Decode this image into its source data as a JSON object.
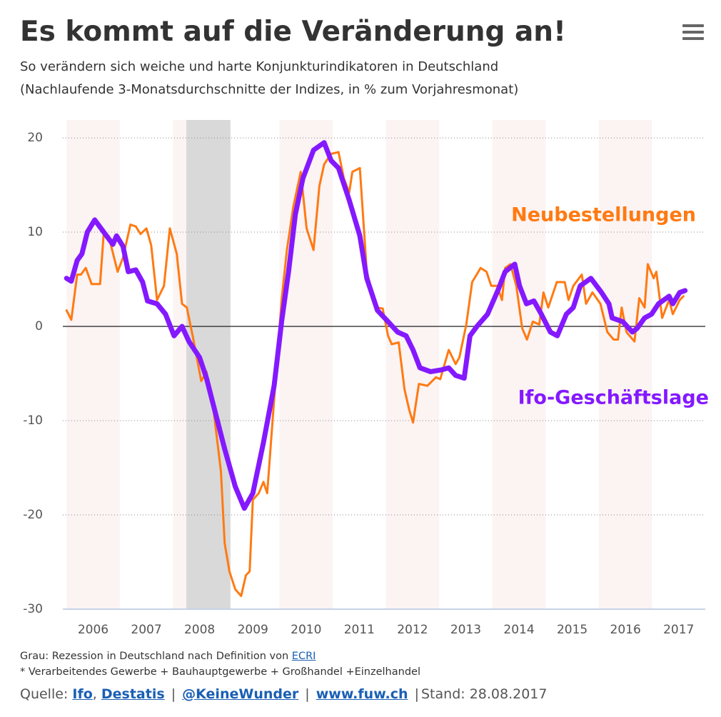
{
  "chart_data": {
    "type": "line",
    "title": "Es kommt auf die Veränderung an!",
    "subtitle": [
      "So verändern sich weiche und harte Konjunkturindikatoren in Deutschland",
      "(Nachlaufende 3-Monatsdurchschnitte der Indizes, in % zum Vorjahresmonat)"
    ],
    "xlim": [
      2005.93,
      2018.0
    ],
    "xticks": [
      {
        "value": 2006.5,
        "label": "2006"
      },
      {
        "value": 2007.5,
        "label": "2007"
      },
      {
        "value": 2008.5,
        "label": "2008"
      },
      {
        "value": 2009.5,
        "label": "2009"
      },
      {
        "value": 2010.5,
        "label": "2010"
      },
      {
        "value": 2011.5,
        "label": "2011"
      },
      {
        "value": 2012.5,
        "label": "2012"
      },
      {
        "value": 2013.5,
        "label": "2013"
      },
      {
        "value": 2014.5,
        "label": "2014"
      },
      {
        "value": 2015.5,
        "label": "2015"
      },
      {
        "value": 2016.5,
        "label": "2016"
      },
      {
        "value": 2017.5,
        "label": "2017"
      }
    ],
    "ylim": [
      -30,
      21.9
    ],
    "yticks": [
      -30,
      -20,
      -10,
      0,
      10,
      20
    ],
    "grid": true,
    "shaded_years": [
      [
        2006,
        2007
      ],
      [
        2008,
        2009
      ],
      [
        2010,
        2011
      ],
      [
        2012,
        2013
      ],
      [
        2014,
        2015
      ],
      [
        2016,
        2017
      ]
    ],
    "recession": [
      2008.25,
      2009.08
    ],
    "series": [
      {
        "name": "Neubestellungen",
        "color": "#ff7a12",
        "width": 3,
        "x": [
          2006,
          2006.09,
          2006.2,
          2006.27,
          2006.36,
          2006.47,
          2006.63,
          2006.7,
          2006.79,
          2006.96,
          2007.06,
          2007.2,
          2007.3,
          2007.39,
          2007.5,
          2007.59,
          2007.7,
          2007.83,
          2007.94,
          2008.07,
          2008.17,
          2008.26,
          2008.37,
          2008.53,
          2008.63,
          2008.77,
          2008.9,
          2008.97,
          2009.06,
          2009.17,
          2009.28,
          2009.37,
          2009.44,
          2009.5,
          2009.61,
          2009.7,
          2009.77,
          2009.9,
          2010.04,
          2010.14,
          2010.26,
          2010.4,
          2010.51,
          2010.64,
          2010.75,
          2010.84,
          2010.97,
          2011.11,
          2011.21,
          2011.31,
          2011.37,
          2011.51,
          2011.64,
          2011.82,
          2011.94,
          2012.04,
          2012.11,
          2012.24,
          2012.35,
          2012.44,
          2012.51,
          2012.62,
          2012.78,
          2012.94,
          2013.02,
          2013.18,
          2013.31,
          2013.38,
          2013.51,
          2013.62,
          2013.78,
          2013.89,
          2013.98,
          2014.09,
          2014.18,
          2014.24,
          2014.34,
          2014.45,
          2014.56,
          2014.65,
          2014.76,
          2014.88,
          2014.96,
          2015.05,
          2015.21,
          2015.36,
          2015.43,
          2015.52,
          2015.68,
          2015.76,
          2015.88,
          2016.03,
          2016.16,
          2016.28,
          2016.36,
          2016.43,
          2016.52,
          2016.67,
          2016.76,
          2016.86,
          2016.92,
          2017.03,
          2017.08,
          2017.19,
          2017.32,
          2017.39,
          2017.52,
          2017.59
        ],
        "values": [
          1.7,
          0.7,
          5.5,
          5.5,
          6.2,
          4.5,
          4.5,
          10,
          9.6,
          5.8,
          7.3,
          10.8,
          10.6,
          9.8,
          10.4,
          8.6,
          2.8,
          4.3,
          10.4,
          7.7,
          2.4,
          2,
          -1,
          -5.8,
          -4.8,
          -9.3,
          -15.4,
          -23,
          -26,
          -27.9,
          -28.6,
          -26.4,
          -26,
          -18.4,
          -17.7,
          -16.5,
          -17.7,
          -7.8,
          2.8,
          8.1,
          12.7,
          16.4,
          10.4,
          8.1,
          14.9,
          17.2,
          18.3,
          18.5,
          15.7,
          14.2,
          16.4,
          16.8,
          5.8,
          2,
          1.9,
          -1,
          -1.9,
          -1.7,
          -6.7,
          -8.9,
          -10.2,
          -6.1,
          -6.3,
          -5.4,
          -5.6,
          -2.5,
          -4,
          -3.3,
          0.2,
          4.7,
          6.2,
          5.8,
          4.3,
          4.3,
          2.8,
          6.2,
          6.6,
          4.3,
          -0.2,
          -1.4,
          0.5,
          0.2,
          3.6,
          2,
          4.7,
          4.7,
          2.8,
          4.3,
          5.5,
          2.4,
          3.6,
          2.4,
          -0.6,
          -1.4,
          -1.4,
          2,
          -0.6,
          -1.6,
          3,
          2,
          6.6,
          5.1,
          5.8,
          0.9,
          2.8,
          1.3,
          2.8,
          3.2
        ]
      },
      {
        "name": "Ifo-Geschäftslage",
        "color": "#8419ff",
        "width": 7,
        "x": [
          2006,
          2006.09,
          2006.2,
          2006.29,
          2006.39,
          2006.53,
          2006.7,
          2006.87,
          2006.94,
          2007.06,
          2007.16,
          2007.3,
          2007.43,
          2007.52,
          2007.7,
          2007.86,
          2008.02,
          2008.17,
          2008.3,
          2008.5,
          2008.63,
          2008.77,
          2008.97,
          2009.17,
          2009.34,
          2009.5,
          2009.7,
          2009.9,
          2010.04,
          2010.17,
          2010.3,
          2010.44,
          2010.64,
          2010.84,
          2010.97,
          2011.11,
          2011.31,
          2011.51,
          2011.64,
          2011.84,
          2012.04,
          2012.22,
          2012.38,
          2012.51,
          2012.64,
          2012.84,
          2013.05,
          2013.18,
          2013.31,
          2013.47,
          2013.58,
          2013.71,
          2013.91,
          2014.11,
          2014.24,
          2014.42,
          2014.51,
          2014.64,
          2014.78,
          2014.92,
          2015.09,
          2015.22,
          2015.39,
          2015.52,
          2015.65,
          2015.85,
          2016.05,
          2016.19,
          2016.25,
          2016.45,
          2016.63,
          2016.72,
          2016.86,
          2016.99,
          2017.12,
          2017.32,
          2017.39,
          2017.52,
          2017.62
        ],
        "values": [
          5.1,
          4.8,
          7,
          7.7,
          10,
          11.3,
          10,
          8.7,
          9.6,
          8.5,
          5.8,
          6,
          4.7,
          2.7,
          2.4,
          1.3,
          -1,
          0,
          -1.6,
          -3.3,
          -5.5,
          -8.6,
          -13,
          -17,
          -19.3,
          -17.7,
          -12.3,
          -6.3,
          0.5,
          5.8,
          11.9,
          15.7,
          18.7,
          19.5,
          17.6,
          16.8,
          13.4,
          9.6,
          5.1,
          1.7,
          0.5,
          -0.6,
          -1,
          -2.5,
          -4.4,
          -4.8,
          -4.6,
          -4.4,
          -5.2,
          -5.5,
          -1,
          0,
          1.3,
          3.9,
          5.8,
          6.6,
          4.3,
          2.4,
          2.7,
          1.3,
          -0.6,
          -1,
          1.3,
          2,
          4.3,
          5.1,
          3.6,
          2.4,
          0.9,
          0.5,
          -0.6,
          -0.2,
          0.9,
          1.3,
          2.4,
          3.2,
          2.4,
          3.6,
          3.8
        ]
      }
    ]
  },
  "footer": {
    "note": "Grau: Rezession in Deutschland nach Definition von",
    "note_link": "ECRI",
    "footnote": "* Verarbeitendes Gewerbe + Bauhauptgewerbe + Großhandel +Einzelhandel",
    "source": [
      "Quelle:",
      "Ifo",
      ",",
      "Destatis",
      "|",
      "@KeineWunder",
      "|",
      "www.fuw.ch",
      "|",
      "Stand: 28.08.2017"
    ]
  }
}
